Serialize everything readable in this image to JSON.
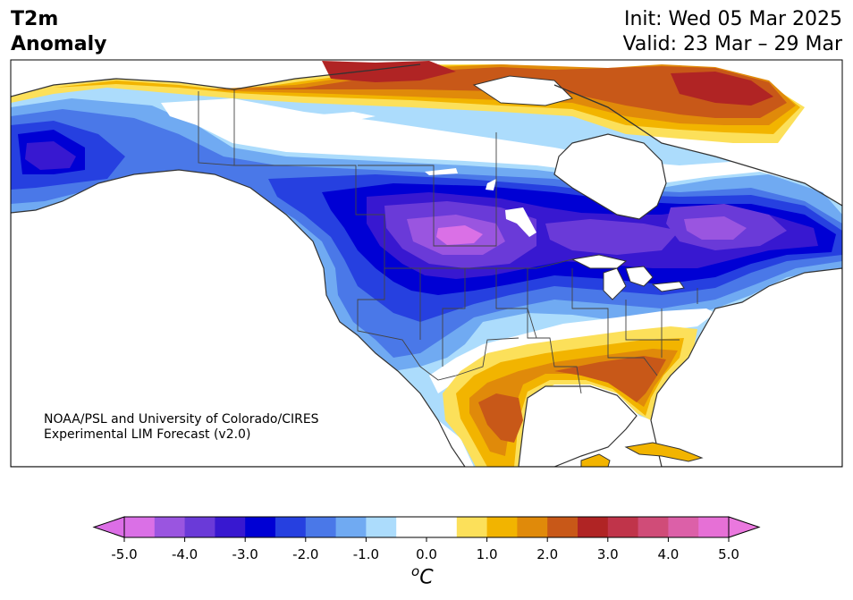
{
  "title": {
    "line1": "T2m",
    "line2": "Anomaly",
    "init": "Init: Wed 05 Mar 2025",
    "valid": "Valid: 23 Mar – 29 Mar"
  },
  "credit": {
    "line1": "NOAA/PSL and University of Colorado/CIRES",
    "line2": "Experimental LIM Forecast (v2.0)"
  },
  "colorbar": {
    "unit_sup": "o",
    "unit": "C",
    "ticks": [
      "-5.0",
      "-4.0",
      "-3.0",
      "-2.0",
      "-1.0",
      "0.0",
      "1.0",
      "2.0",
      "3.0",
      "4.0",
      "5.0"
    ],
    "colors": [
      "#da70e6",
      "#9a55e0",
      "#6a3ad8",
      "#3818d0",
      "#0000d4",
      "#2640e0",
      "#4a78e8",
      "#70aaf2",
      "#acdcfc",
      "#ffffff",
      "#ffffff",
      "#fce05a",
      "#f2b400",
      "#e08a0a",
      "#c85818",
      "#b02424",
      "#c0344a",
      "#d04c78",
      "#dc60a8",
      "#e670d6"
    ],
    "under_color": "#dc6ee6",
    "over_color": "#ea78de"
  },
  "map": {
    "ocean_color": "#ffffff",
    "warm_colors": [
      "#fce05a",
      "#f2b400",
      "#e08a0a",
      "#c85818",
      "#b02424"
    ],
    "cold_colors": [
      "#acdcfc",
      "#70aaf2",
      "#4a78e8",
      "#2640e0",
      "#0000d4",
      "#3818d0",
      "#6a3ad8",
      "#9a55e0",
      "#da70e6"
    ]
  }
}
